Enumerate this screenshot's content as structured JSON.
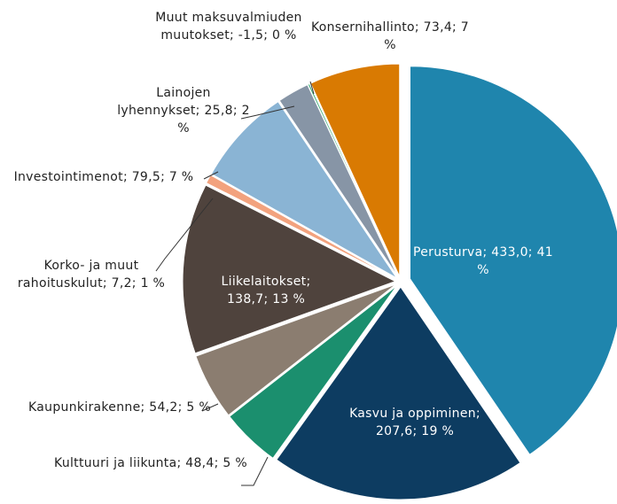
{
  "chart_data": {
    "type": "pie",
    "labels": [
      "Perusturva; 433,0; 41 %",
      "Kasvu ja oppiminen; 207,6; 19 %",
      "Kulttuuri ja liikunta; 48,4; 5 %",
      "Kaupunkirakenne; 54,2; 5 %",
      "Liikelaitokset; 138,7; 13 %",
      "Korko- ja muut rahoituskulut; 7,2; 1 %",
      "Investointimenot; 79,5; 7 %",
      "Lainojen lyhennykset; 25,8; 2 %",
      "Muut maksuvalmiuden muutokset; -1,5; 0 %",
      "Konsernihallinto; 73,4; 7 %"
    ],
    "values": [
      433.0,
      207.6,
      48.4,
      54.2,
      138.7,
      7.2,
      79.5,
      25.8,
      -1.5,
      73.4
    ],
    "colors": [
      "#1f85ad",
      "#0d3c61",
      "#1b8f6e",
      "#8b7d70",
      "#4f433d",
      "#f2a27e",
      "#8ab4d4",
      "#8795a6",
      "#3fae7a",
      "#d97a02"
    ]
  }
}
